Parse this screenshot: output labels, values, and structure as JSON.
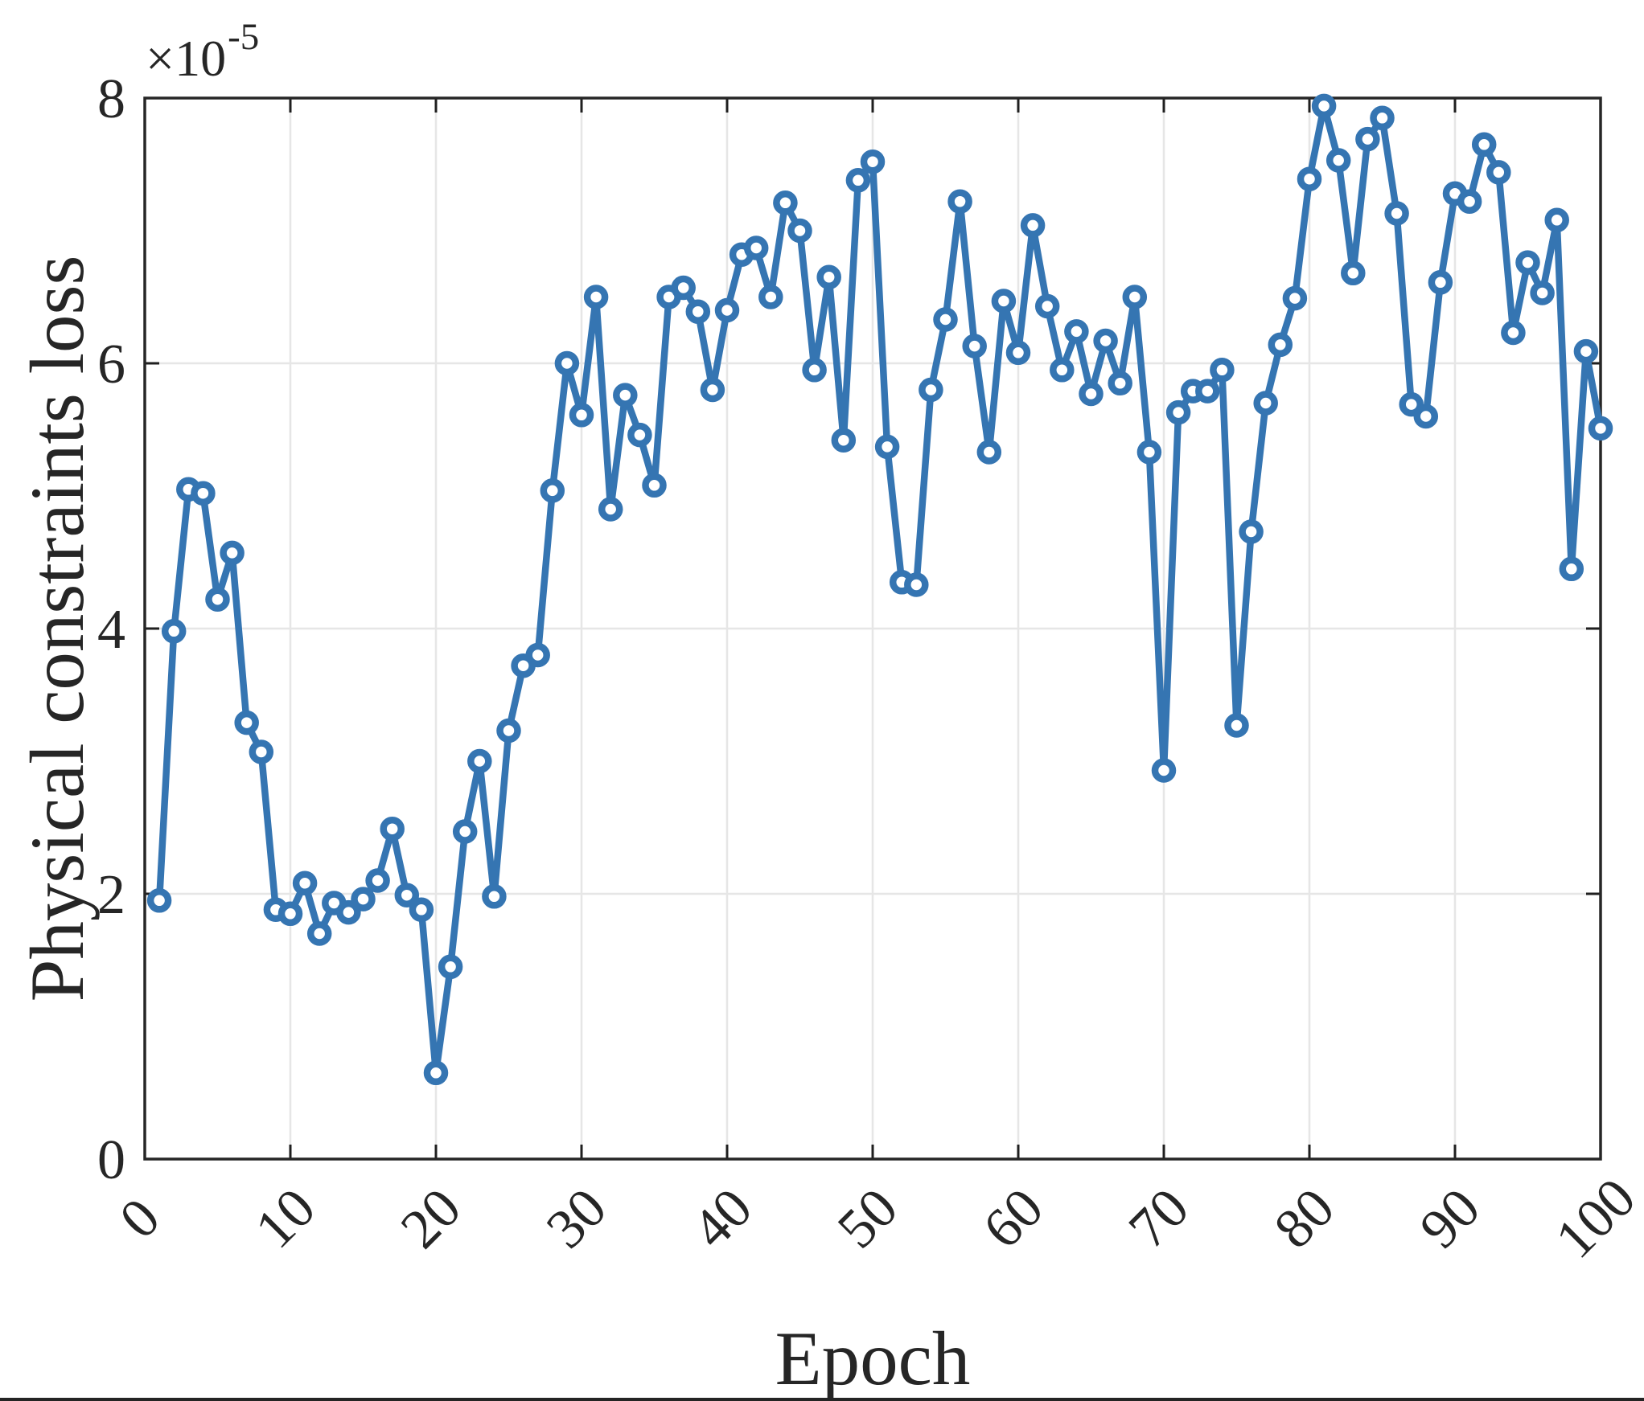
{
  "figure": {
    "xlabel": "Epoch",
    "ylabel": "Physical constraints loss",
    "offset_text": "×10",
    "offset_exp": "-5",
    "background": "#ffffff",
    "line_color": "#3575b2",
    "axis_color": "#262626",
    "tick_color": "#1f1f1f",
    "grid_color": "#e6e6e6",
    "marker_face": "#ffffff"
  },
  "chart_data": {
    "type": "line",
    "title": "",
    "xlabel": "Epoch",
    "ylabel": "Physical constraints loss",
    "y_multiplier_text": "×10⁻⁵",
    "y_unit_scale": 1e-05,
    "xlim": [
      0,
      100
    ],
    "ylim_in_1e5_units": [
      0,
      8
    ],
    "xticks": [
      "0",
      "10",
      "20",
      "30",
      "40",
      "50",
      "60",
      "70",
      "80",
      "90",
      "100"
    ],
    "xtick_values": [
      0,
      10,
      20,
      30,
      40,
      50,
      60,
      70,
      80,
      90,
      100
    ],
    "yticks": [
      "0",
      "2",
      "4",
      "6",
      "8"
    ],
    "ytick_values": [
      0,
      2,
      4,
      6,
      8
    ],
    "grid": true,
    "legend": null,
    "marker": "o",
    "x": [
      1,
      2,
      3,
      4,
      5,
      6,
      7,
      8,
      9,
      10,
      11,
      12,
      13,
      14,
      15,
      16,
      17,
      18,
      19,
      20,
      21,
      22,
      23,
      24,
      25,
      26,
      27,
      28,
      29,
      30,
      31,
      32,
      33,
      34,
      35,
      36,
      37,
      38,
      39,
      40,
      41,
      42,
      43,
      44,
      45,
      46,
      47,
      48,
      49,
      50,
      51,
      52,
      53,
      54,
      55,
      56,
      57,
      58,
      59,
      60,
      61,
      62,
      63,
      64,
      65,
      66,
      67,
      68,
      69,
      70,
      71,
      72,
      73,
      74,
      75,
      76,
      77,
      78,
      79,
      80,
      81,
      82,
      83,
      84,
      85,
      86,
      87,
      88,
      89,
      90,
      91,
      92,
      93,
      94,
      95,
      96,
      97,
      98,
      99,
      100
    ],
    "values_in_1e5_units": [
      1.95,
      3.98,
      5.05,
      5.02,
      4.22,
      4.57,
      3.29,
      3.07,
      1.88,
      1.85,
      2.08,
      1.7,
      1.93,
      1.86,
      1.96,
      2.1,
      2.49,
      1.99,
      1.88,
      0.65,
      1.45,
      2.47,
      3.0,
      1.98,
      3.23,
      3.72,
      3.8,
      5.04,
      6.0,
      5.61,
      6.5,
      4.9,
      5.76,
      5.46,
      5.08,
      6.5,
      6.57,
      6.39,
      5.8,
      6.4,
      6.82,
      6.87,
      6.5,
      7.21,
      7.0,
      5.95,
      6.65,
      5.42,
      7.38,
      7.52,
      5.37,
      4.35,
      4.33,
      5.8,
      6.33,
      7.22,
      6.13,
      5.33,
      6.47,
      6.08,
      7.04,
      6.43,
      5.95,
      6.24,
      5.77,
      6.17,
      5.85,
      6.5,
      5.33,
      2.93,
      5.63,
      5.79,
      5.79,
      5.95,
      3.27,
      4.73,
      5.7,
      6.14,
      6.49,
      7.39,
      7.94,
      7.53,
      6.68,
      7.69,
      7.85,
      7.13,
      5.69,
      5.6,
      6.61,
      7.28,
      7.22,
      7.65,
      7.44,
      6.23,
      6.76,
      6.53,
      7.08,
      4.45,
      6.09,
      5.51
    ]
  }
}
